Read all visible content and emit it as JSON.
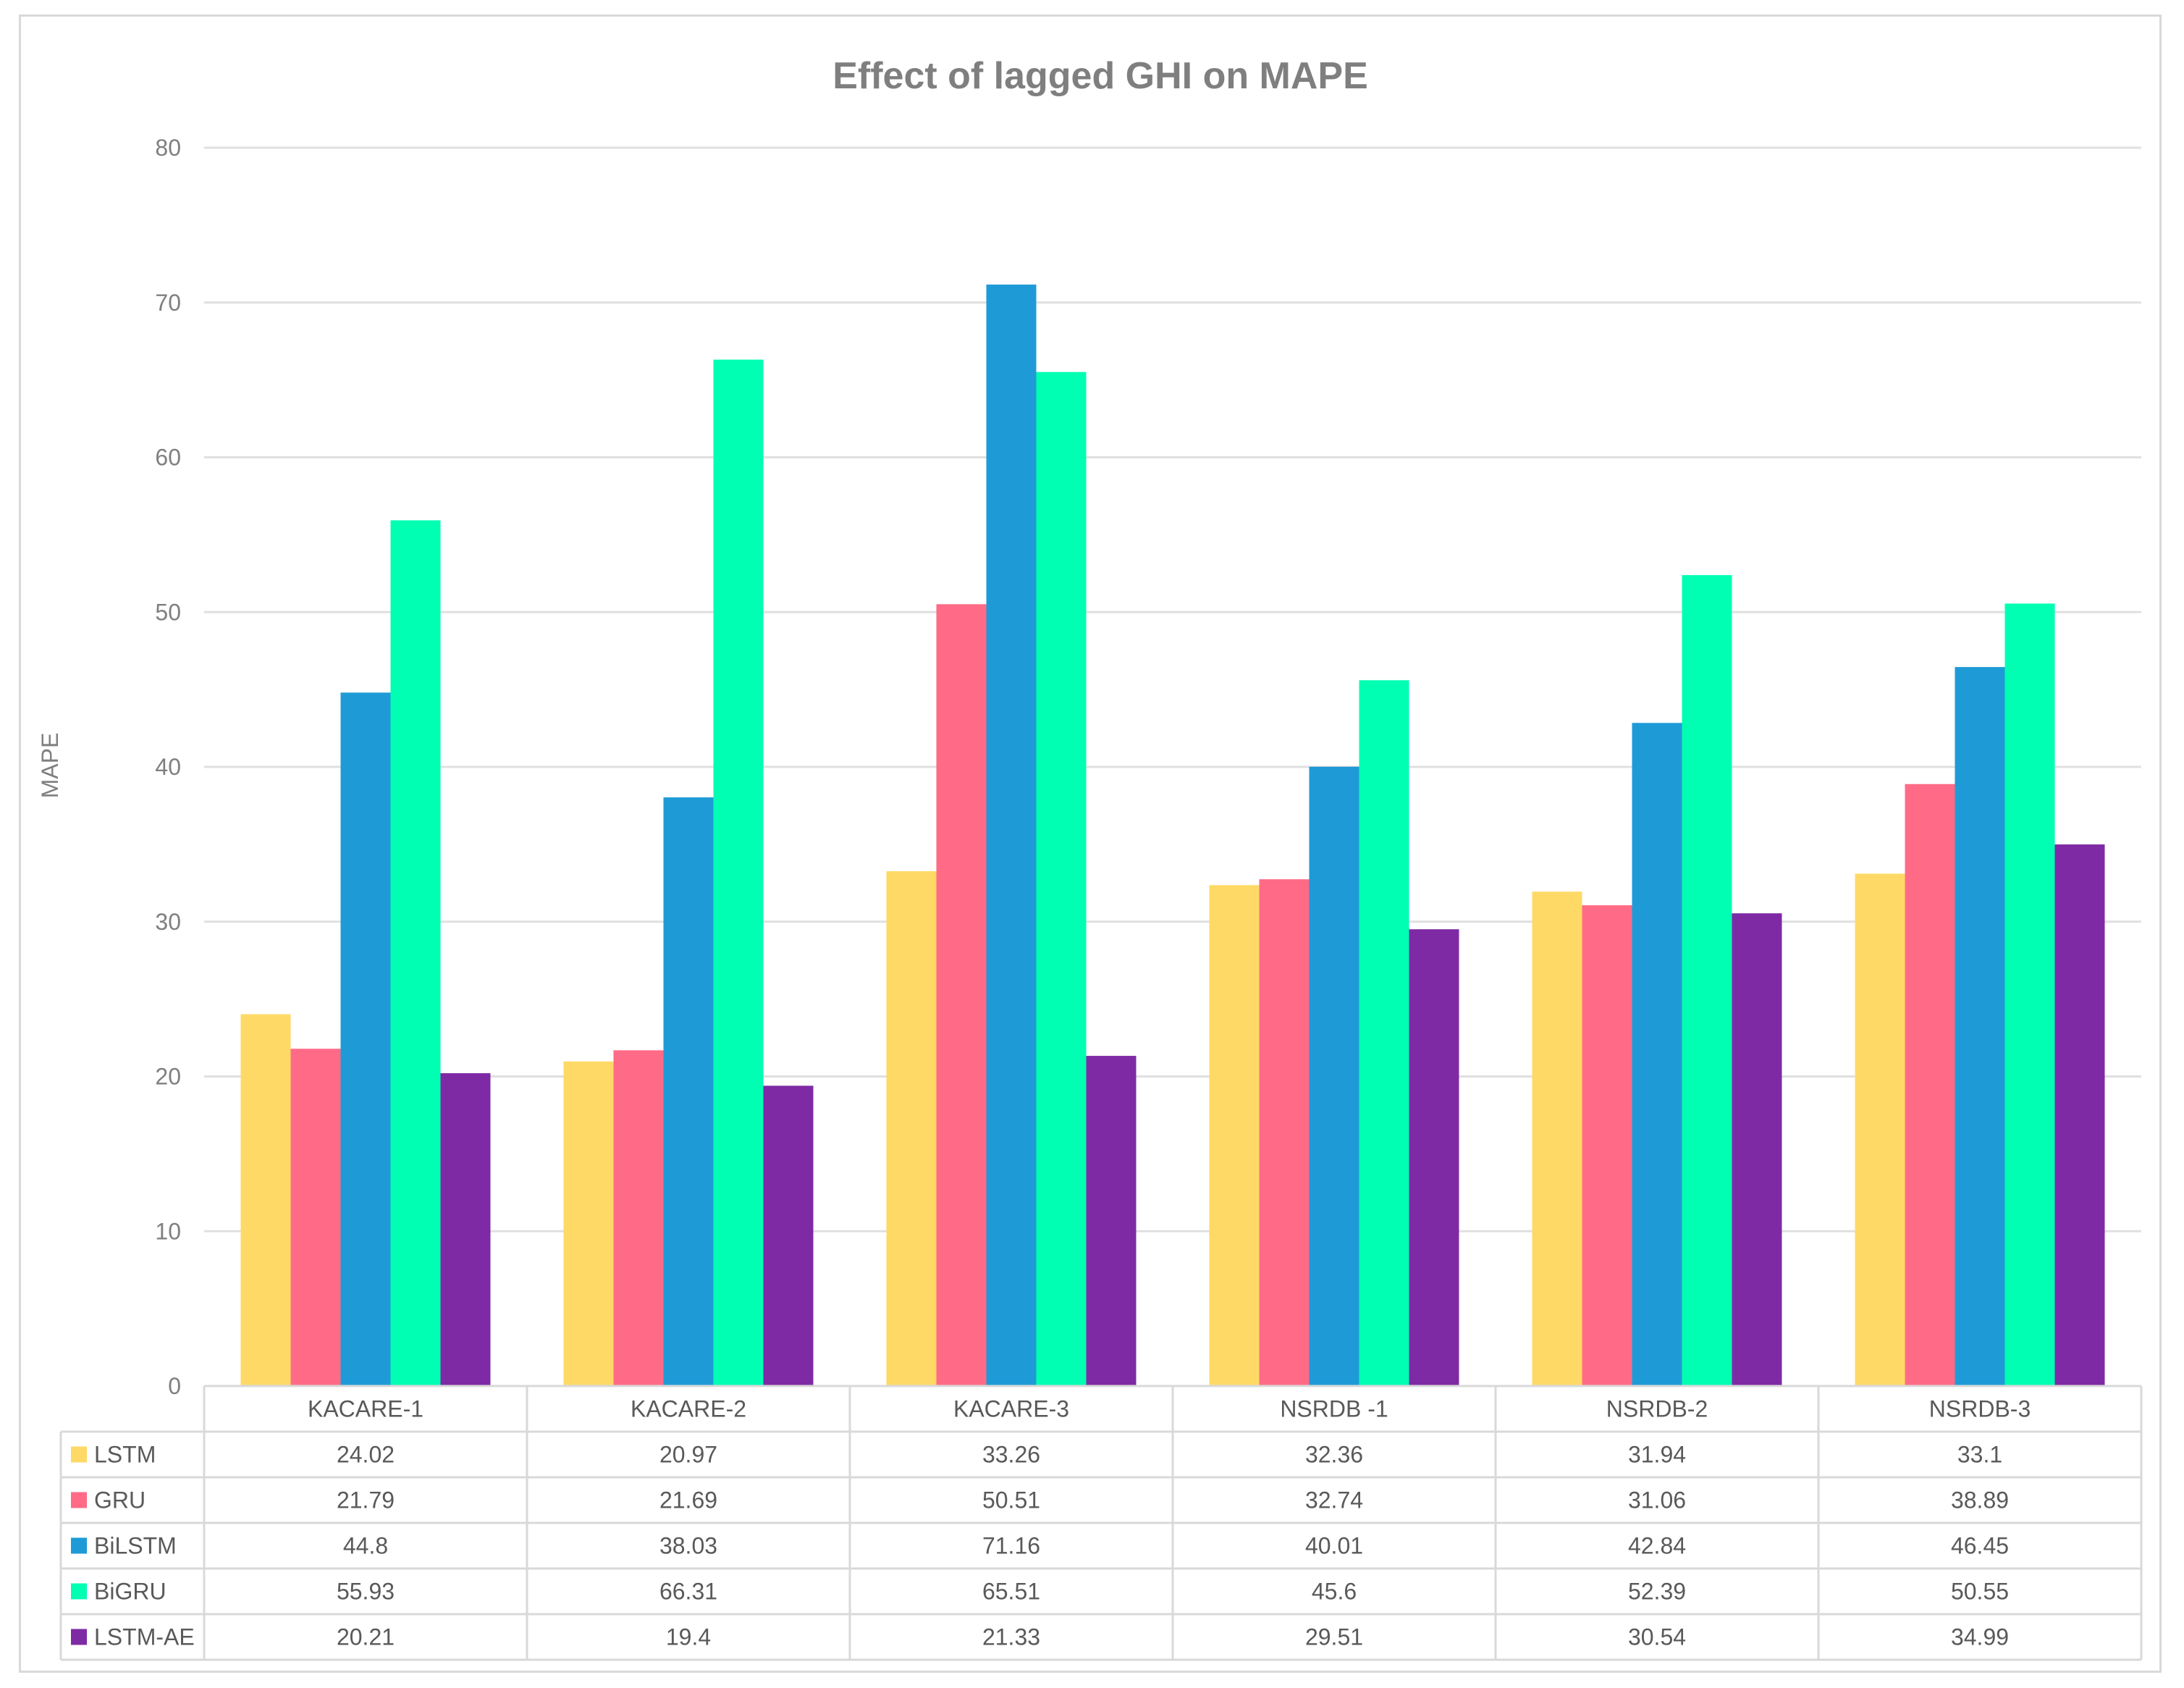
{
  "chart_data": {
    "type": "bar",
    "title": "Effect of lagged GHI on MAPE",
    "xlabel": "",
    "ylabel": "MAPE",
    "ylim": [
      0,
      80
    ],
    "yticks": [
      0,
      10,
      20,
      30,
      40,
      50,
      60,
      70,
      80
    ],
    "grid": true,
    "legend": "data-table",
    "categories": [
      "KACARE-1",
      "KACARE-2",
      "KACARE-3",
      "NSRDB -1",
      "NSRDB-2",
      "NSRDB-3"
    ],
    "series": [
      {
        "name": "LSTM",
        "color": "#ffd966",
        "values": [
          24.02,
          20.97,
          33.26,
          32.36,
          31.94,
          33.1
        ],
        "labels": [
          "24.02",
          "20.97",
          "33.26",
          "32.36",
          "31.94",
          "33.1"
        ]
      },
      {
        "name": "GRU",
        "color": "#ff6b87",
        "values": [
          21.79,
          21.69,
          50.51,
          32.74,
          31.06,
          38.89
        ],
        "labels": [
          "21.79",
          "21.69",
          "50.51",
          "32.74",
          "31.06",
          "38.89"
        ]
      },
      {
        "name": "BiLSTM",
        "color": "#1e9bd7",
        "values": [
          44.8,
          38.03,
          71.16,
          40.01,
          42.84,
          46.45
        ],
        "labels": [
          "44.8",
          "38.03",
          "71.16",
          "40.01",
          "42.84",
          "46.45"
        ]
      },
      {
        "name": "BiGRU",
        "color": "#00ffb3",
        "values": [
          55.93,
          66.31,
          65.51,
          45.6,
          52.39,
          50.55
        ],
        "labels": [
          "55.93",
          "66.31",
          "65.51",
          "45.6",
          "52.39",
          "50.55"
        ]
      },
      {
        "name": "LSTM-AE",
        "color": "#7f2aa5",
        "values": [
          20.21,
          19.4,
          21.33,
          29.51,
          30.54,
          34.99
        ],
        "labels": [
          "20.21",
          "19.4",
          "21.33",
          "29.51",
          "30.54",
          "34.99"
        ]
      }
    ]
  }
}
